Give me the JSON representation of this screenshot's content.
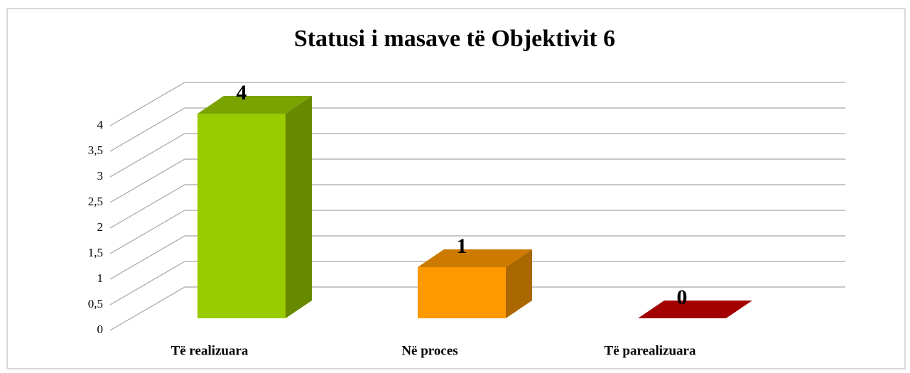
{
  "chart_data": {
    "type": "bar3d",
    "title": "Statusi i masave të Objektivit 6",
    "categories": [
      "Të realizuara",
      "Në proces",
      "Të parealizuara"
    ],
    "values": [
      4,
      1,
      0
    ],
    "colors": [
      "#99cc00",
      "#ff9900",
      "#cc0000"
    ],
    "ylim": [
      0,
      4
    ],
    "yticks": [
      0,
      {
        "value": 0.5,
        "label": "0,5"
      },
      1,
      {
        "value": 1.5,
        "label": "1,5"
      },
      2,
      {
        "value": 2.5,
        "label": "2,5"
      },
      3,
      {
        "value": 3.5,
        "label": "3,5"
      },
      4
    ],
    "grid": true
  }
}
